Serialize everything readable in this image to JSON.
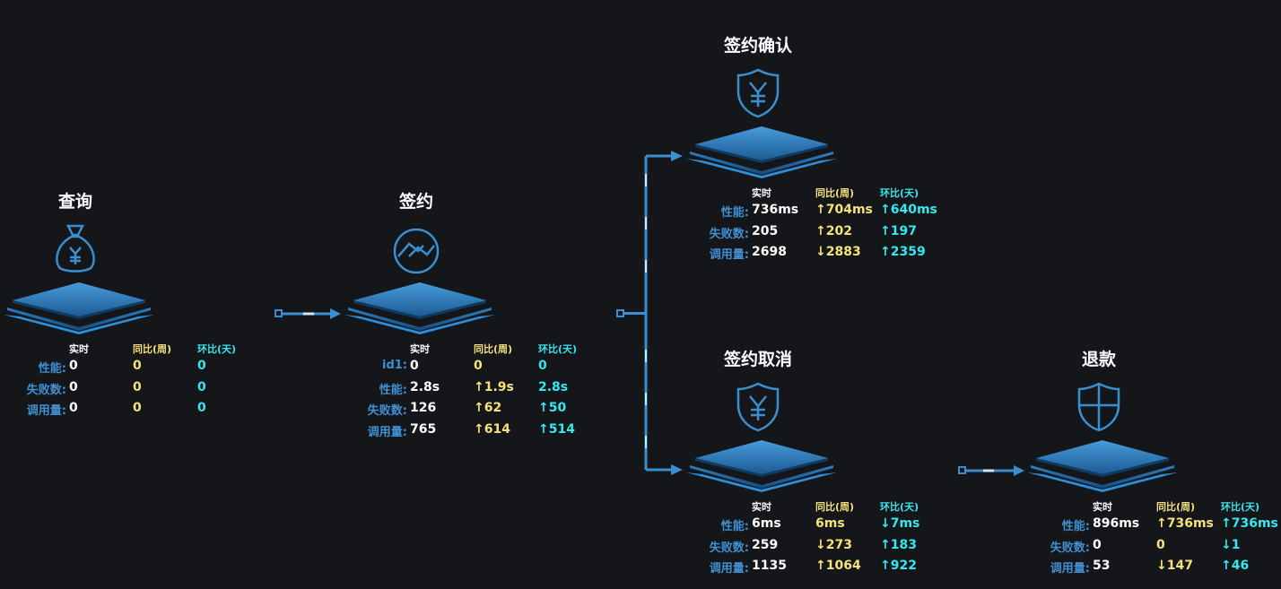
{
  "headers": {
    "realtime": "实时",
    "yoy": "同比(周)",
    "mom": "环比(天)"
  },
  "nodes": {
    "query": {
      "title": "查询",
      "icon": "money-bag-icon",
      "rows": [
        {
          "label": "性能:",
          "rt": "0",
          "yoy": "0",
          "mom": "0"
        },
        {
          "label": "失败数:",
          "rt": "0",
          "yoy": "0",
          "mom": "0"
        },
        {
          "label": "调用量:",
          "rt": "0",
          "yoy": "0",
          "mom": "0"
        }
      ]
    },
    "sign": {
      "title": "签约",
      "icon": "handshake-icon",
      "rows": [
        {
          "label": "id1:",
          "rt": "0",
          "yoy": "0",
          "mom": "0"
        },
        {
          "label": "性能:",
          "rt": "2.8s",
          "yoy": "↑1.9s",
          "mom": "2.8s"
        },
        {
          "label": "失败数:",
          "rt": "126",
          "yoy": "↑62",
          "mom": "↑50"
        },
        {
          "label": "调用量:",
          "rt": "765",
          "yoy": "↑614",
          "mom": "↑514"
        }
      ]
    },
    "sign_confirm": {
      "title": "签约确认",
      "icon": "yen-shield-icon",
      "rows": [
        {
          "label": "性能:",
          "rt": "736ms",
          "yoy": "↑704ms",
          "mom": "↑640ms"
        },
        {
          "label": "失败数:",
          "rt": "205",
          "yoy": "↑202",
          "mom": "↑197"
        },
        {
          "label": "调用量:",
          "rt": "2698",
          "yoy": "↓2883",
          "mom": "↑2359"
        }
      ]
    },
    "sign_cancel": {
      "title": "签约取消",
      "icon": "yen-shield-icon",
      "rows": [
        {
          "label": "性能:",
          "rt": "6ms",
          "yoy": "6ms",
          "mom": "↓7ms"
        },
        {
          "label": "失败数:",
          "rt": "259",
          "yoy": "↓273",
          "mom": "↑183"
        },
        {
          "label": "调用量:",
          "rt": "1135",
          "yoy": "↑1064",
          "mom": "↑922"
        }
      ]
    },
    "refund": {
      "title": "退款",
      "icon": "shield-icon",
      "rows": [
        {
          "label": "性能:",
          "rt": "896ms",
          "yoy": "↑736ms",
          "mom": "↑736ms"
        },
        {
          "label": "失败数:",
          "rt": "0",
          "yoy": "0",
          "mom": "↓1"
        },
        {
          "label": "调用量:",
          "rt": "53",
          "yoy": "↓147",
          "mom": "↑46"
        }
      ]
    }
  },
  "colors": {
    "background": "#141619",
    "label_blue": "#3f8fd1",
    "yoy_yellow": "#f6e27a",
    "mom_cyan": "#35e8f0",
    "accent_blue": "#3a8fd0"
  }
}
